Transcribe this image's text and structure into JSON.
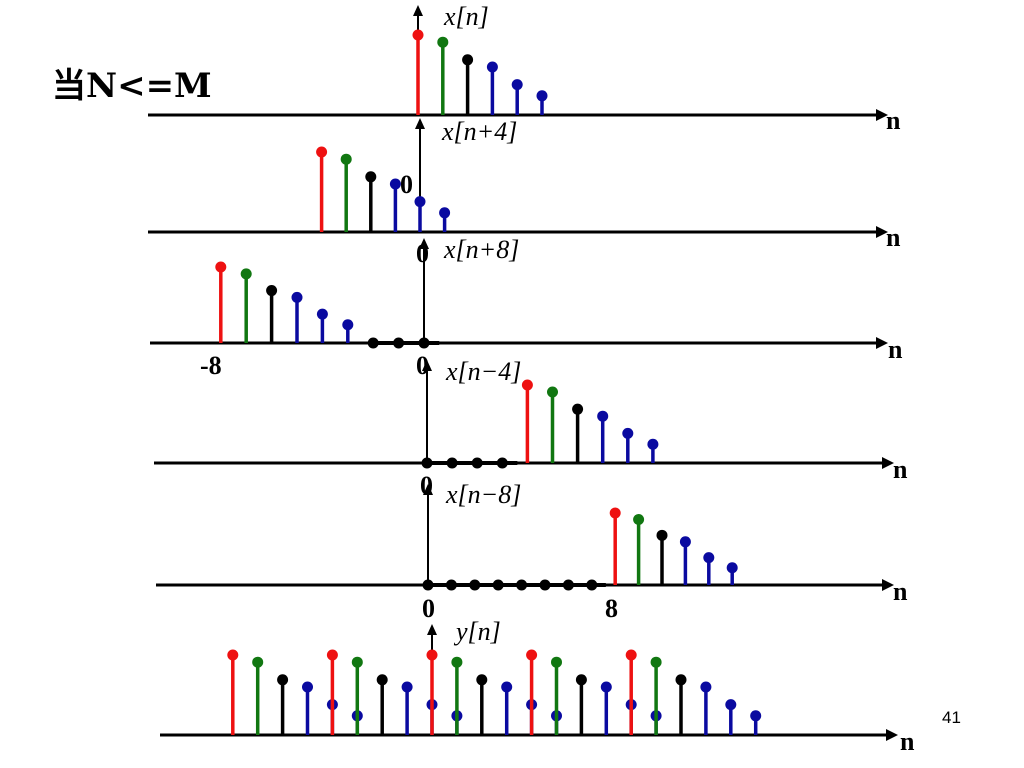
{
  "slide": {
    "title": "当N<=M",
    "page_number": "41"
  },
  "colors": {
    "red": "#ee1111",
    "green": "#117711",
    "black": "#000000",
    "blue": "#0a0aa0"
  },
  "panels": [
    {
      "id": "x-n",
      "label": "x[n]",
      "axis_label": "n",
      "tick_labels": [],
      "stems": [
        {
          "n": 0,
          "h": 1.0,
          "c": "red"
        },
        {
          "n": 1,
          "h": 0.91,
          "c": "green"
        },
        {
          "n": 2,
          "h": 0.69,
          "c": "black"
        },
        {
          "n": 3,
          "h": 0.6,
          "c": "blue"
        },
        {
          "n": 4,
          "h": 0.38,
          "c": "blue"
        },
        {
          "n": 5,
          "h": 0.24,
          "c": "blue"
        }
      ],
      "zero_dots": []
    },
    {
      "id": "x-n-plus-4",
      "label": "x[n+4]",
      "axis_label": "n",
      "tick_labels": [
        "0"
      ],
      "stems": [
        {
          "n": -4,
          "h": 1.0,
          "c": "red"
        },
        {
          "n": -3,
          "h": 0.91,
          "c": "green"
        },
        {
          "n": -2,
          "h": 0.69,
          "c": "black"
        },
        {
          "n": -1,
          "h": 0.6,
          "c": "blue"
        },
        {
          "n": 0,
          "h": 0.38,
          "c": "blue"
        },
        {
          "n": 1,
          "h": 0.24,
          "c": "blue"
        }
      ],
      "zero_dots": []
    },
    {
      "id": "x-n-plus-8",
      "label": "x[n+8]",
      "axis_label": "n",
      "tick_labels": [
        "0",
        "-8",
        "0"
      ],
      "stems": [
        {
          "n": -8,
          "h": 1.0,
          "c": "red"
        },
        {
          "n": -7,
          "h": 0.91,
          "c": "green"
        },
        {
          "n": -6,
          "h": 0.69,
          "c": "black"
        },
        {
          "n": -5,
          "h": 0.6,
          "c": "blue"
        },
        {
          "n": -4,
          "h": 0.38,
          "c": "blue"
        },
        {
          "n": -3,
          "h": 0.24,
          "c": "blue"
        }
      ],
      "zero_dots": [
        -2,
        -1,
        0
      ]
    },
    {
      "id": "x-n-minus-4",
      "label": "x[n−4]",
      "axis_label": "n",
      "tick_labels": [
        "0"
      ],
      "stems": [
        {
          "n": 4,
          "h": 1.0,
          "c": "red"
        },
        {
          "n": 5,
          "h": 0.91,
          "c": "green"
        },
        {
          "n": 6,
          "h": 0.69,
          "c": "black"
        },
        {
          "n": 7,
          "h": 0.6,
          "c": "blue"
        },
        {
          "n": 8,
          "h": 0.38,
          "c": "blue"
        },
        {
          "n": 9,
          "h": 0.24,
          "c": "blue"
        }
      ],
      "zero_dots": [
        0,
        1,
        2,
        3
      ]
    },
    {
      "id": "x-n-minus-8",
      "label": "x[n−8]",
      "axis_label": "n",
      "tick_labels": [
        "0",
        "8"
      ],
      "stems": [
        {
          "n": 8,
          "h": 1.0,
          "c": "red"
        },
        {
          "n": 9,
          "h": 0.91,
          "c": "green"
        },
        {
          "n": 10,
          "h": 0.69,
          "c": "black"
        },
        {
          "n": 11,
          "h": 0.6,
          "c": "blue"
        },
        {
          "n": 12,
          "h": 0.38,
          "c": "blue"
        },
        {
          "n": 13,
          "h": 0.24,
          "c": "blue"
        }
      ],
      "zero_dots": [
        0,
        1,
        2,
        3,
        4,
        5,
        6,
        7
      ]
    },
    {
      "id": "y-n",
      "label": "y[n]",
      "axis_label": "n",
      "tick_labels": [],
      "stems": [
        {
          "n": -8,
          "h": 1.0,
          "c": "red"
        },
        {
          "n": -7,
          "h": 0.91,
          "c": "green"
        },
        {
          "n": -6,
          "h": 0.69,
          "c": "black"
        },
        {
          "n": -5,
          "h": 0.6,
          "c": "blue"
        },
        {
          "n": -4,
          "h": 0.38,
          "c": "blue"
        },
        {
          "n": -4,
          "h": 1.0,
          "c": "red"
        },
        {
          "n": -3,
          "h": 0.24,
          "c": "blue"
        },
        {
          "n": -3,
          "h": 0.91,
          "c": "green"
        },
        {
          "n": -2,
          "h": 0.69,
          "c": "black"
        },
        {
          "n": -1,
          "h": 0.6,
          "c": "blue"
        },
        {
          "n": 0,
          "h": 0.38,
          "c": "blue"
        },
        {
          "n": 0,
          "h": 1.0,
          "c": "red"
        },
        {
          "n": 1,
          "h": 0.24,
          "c": "blue"
        },
        {
          "n": 1,
          "h": 0.91,
          "c": "green"
        },
        {
          "n": 2,
          "h": 0.69,
          "c": "black"
        },
        {
          "n": 3,
          "h": 0.6,
          "c": "blue"
        },
        {
          "n": 4,
          "h": 0.38,
          "c": "blue"
        },
        {
          "n": 4,
          "h": 1.0,
          "c": "red"
        },
        {
          "n": 5,
          "h": 0.24,
          "c": "blue"
        },
        {
          "n": 5,
          "h": 0.91,
          "c": "green"
        },
        {
          "n": 6,
          "h": 0.69,
          "c": "black"
        },
        {
          "n": 7,
          "h": 0.6,
          "c": "blue"
        },
        {
          "n": 8,
          "h": 0.38,
          "c": "blue"
        },
        {
          "n": 8,
          "h": 1.0,
          "c": "red"
        },
        {
          "n": 9,
          "h": 0.24,
          "c": "blue"
        },
        {
          "n": 9,
          "h": 0.91,
          "c": "green"
        },
        {
          "n": 10,
          "h": 0.69,
          "c": "black"
        },
        {
          "n": 11,
          "h": 0.6,
          "c": "blue"
        },
        {
          "n": 12,
          "h": 0.38,
          "c": "blue"
        },
        {
          "n": 13,
          "h": 0.24,
          "c": "blue"
        }
      ],
      "zero_dots": []
    }
  ]
}
